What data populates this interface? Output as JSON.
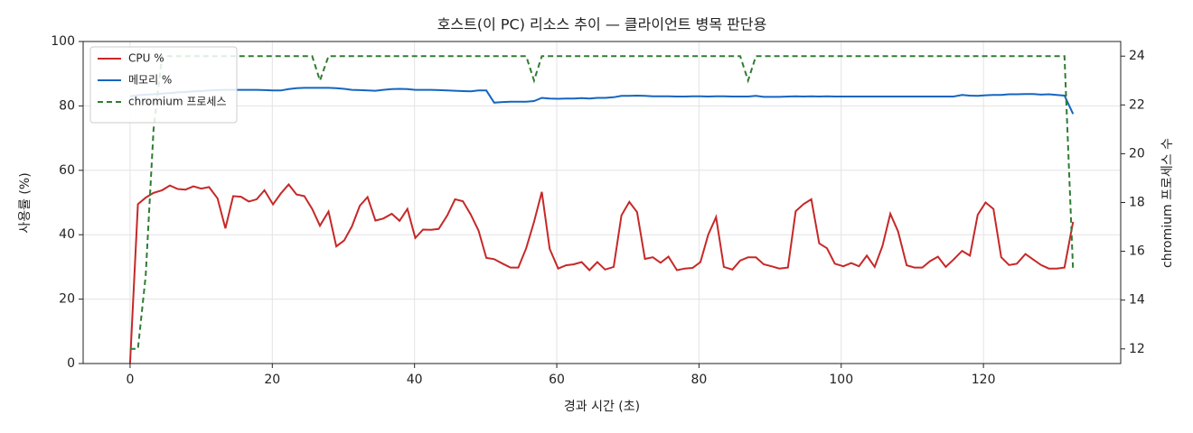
{
  "chart_data": {
    "type": "line",
    "title": "호스트(이 PC) 리소스 추이 — 클라이언트 병목 판단용",
    "x_label": "경과 시간 (초)",
    "y_label": "사용률 (%)",
    "y2_label": "chromium 프로세스 수",
    "x": [
      0,
      1.1,
      2.2,
      3.3,
      4.5,
      5.6,
      6.7,
      7.8,
      8.9,
      10,
      11.1,
      12.3,
      13.4,
      14.5,
      15.6,
      16.7,
      17.8,
      18.9,
      20.1,
      21.2,
      22.3,
      23.4,
      24.5,
      25.6,
      26.7,
      27.9,
      29,
      30.1,
      31.2,
      32.3,
      33.4,
      34.5,
      35.6,
      36.8,
      37.9,
      39,
      40.1,
      41.2,
      42.3,
      43.4,
      44.6,
      45.7,
      46.8,
      47.9,
      49,
      50.1,
      51.2,
      52.4,
      53.5,
      54.6,
      55.7,
      56.8,
      57.9,
      59,
      60.2,
      61.3,
      62.4,
      63.5,
      64.6,
      65.7,
      66.8,
      68,
      69.1,
      70.2,
      71.3,
      72.4,
      73.5,
      74.6,
      75.7,
      76.9,
      78,
      79.1,
      80.2,
      81.3,
      82.4,
      83.5,
      84.7,
      85.8,
      86.9,
      88,
      89.1,
      90.2,
      91.3,
      92.5,
      93.6,
      94.7,
      95.8,
      96.9,
      98,
      99.1,
      100.3,
      101.4,
      102.5,
      103.6,
      104.7,
      105.8,
      106.9,
      108,
      109.2,
      110.3,
      111.4,
      112.5,
      113.6,
      114.7,
      115.8,
      117,
      118.1,
      119.2,
      120.3,
      121.4,
      122.5,
      123.6,
      124.7,
      125.9,
      127,
      128.1,
      129.2,
      130.3,
      131.4,
      132.6
    ],
    "series": [
      {
        "name": "CPU %",
        "color": "#c62828",
        "dashed": false,
        "values": [
          0,
          49.5,
          51.5,
          53,
          53.8,
          55.3,
          54.2,
          54,
          55,
          54.3,
          54.8,
          51.3,
          42,
          52,
          51.8,
          50.3,
          51,
          53.8,
          49.4,
          52.8,
          55.6,
          52.5,
          52,
          48,
          42.8,
          47.2,
          36.4,
          38.2,
          42.6,
          49,
          51.7,
          44.4,
          45,
          46.5,
          44.3,
          48,
          39,
          41.6,
          41.5,
          41.8,
          46,
          51,
          50.4,
          46.3,
          41.3,
          32.8,
          32.4,
          31,
          29.8,
          29.8,
          35.8,
          44,
          53.3,
          35.6,
          29.5,
          30.5,
          30.8,
          31.5,
          29,
          31.5,
          29.2,
          30,
          46,
          50.2,
          47,
          32.5,
          33,
          31.3,
          33.2,
          29,
          29.5,
          29.7,
          31.5,
          40,
          45.5,
          30,
          29.2,
          32,
          33,
          33,
          30.8,
          30.2,
          29.5,
          29.8,
          47.3,
          49.5,
          51,
          37.3,
          35.8,
          31,
          30.2,
          31.2,
          30.2,
          33.5,
          30,
          36.5,
          46.5,
          41,
          30.5,
          29.8,
          29.8,
          31.8,
          33.2,
          30,
          32.3,
          35,
          33.5,
          46.2,
          50,
          48,
          33,
          30.6,
          31,
          34,
          32.3,
          30.6,
          29.5,
          29.5,
          29.8,
          44
        ]
      },
      {
        "name": "메모리 %",
        "color": "#1565c0",
        "dashed": false,
        "values": [
          83,
          83.3,
          83.5,
          83.6,
          83.8,
          84,
          84.2,
          84.3,
          84.5,
          84.6,
          84.8,
          84.9,
          85,
          85,
          85,
          85,
          85,
          84.9,
          84.8,
          84.8,
          85.2,
          85.5,
          85.6,
          85.6,
          85.6,
          85.6,
          85.5,
          85.3,
          85,
          84.9,
          84.8,
          84.7,
          85,
          85.2,
          85.3,
          85.2,
          85,
          85,
          85,
          84.9,
          84.8,
          84.7,
          84.6,
          84.5,
          84.8,
          84.8,
          81,
          81.2,
          81.3,
          81.3,
          81.3,
          81.5,
          82.5,
          82.3,
          82.2,
          82.3,
          82.3,
          82.4,
          82.3,
          82.5,
          82.5,
          82.7,
          83.1,
          83.1,
          83.2,
          83.1,
          83,
          83,
          83,
          82.9,
          82.9,
          83,
          83,
          82.9,
          83,
          83,
          82.9,
          82.9,
          82.9,
          83.1,
          82.8,
          82.8,
          82.8,
          82.9,
          83,
          82.9,
          83,
          82.9,
          83,
          82.9,
          82.9,
          82.9,
          82.9,
          82.9,
          82.9,
          82.9,
          82.9,
          82.9,
          82.9,
          82.9,
          82.9,
          82.9,
          82.9,
          82.9,
          82.9,
          83.4,
          83.2,
          83.1,
          83.3,
          83.4,
          83.4,
          83.6,
          83.6,
          83.7,
          83.7,
          83.5,
          83.6,
          83.4,
          83.2,
          77.5
        ]
      },
      {
        "name": "chromium 프로세스",
        "color": "#2e7d32",
        "dashed": true,
        "axis": "y2",
        "values": [
          12,
          12,
          15,
          21,
          24,
          24,
          24,
          24,
          24,
          24,
          24,
          24,
          24,
          24,
          24,
          24,
          24,
          24,
          24,
          24,
          24,
          24,
          24,
          24,
          23,
          24,
          24,
          24,
          24,
          24,
          24,
          24,
          24,
          24,
          24,
          24,
          24,
          24,
          24,
          24,
          24,
          24,
          24,
          24,
          24,
          24,
          24,
          24,
          24,
          24,
          24,
          23,
          24,
          24,
          24,
          24,
          24,
          24,
          24,
          24,
          24,
          24,
          24,
          24,
          24,
          24,
          24,
          24,
          24,
          24,
          24,
          24,
          24,
          24,
          24,
          24,
          24,
          24,
          23,
          24,
          24,
          24,
          24,
          24,
          24,
          24,
          24,
          24,
          24,
          24,
          24,
          24,
          24,
          24,
          24,
          24,
          24,
          24,
          24,
          24,
          24,
          24,
          24,
          24,
          24,
          24,
          24,
          24,
          24,
          24,
          24,
          24,
          24,
          24,
          24,
          24,
          24,
          24,
          24,
          15.2
        ]
      }
    ],
    "xlim": [
      -6.6,
      139.3
    ],
    "xticks": [
      0,
      20,
      40,
      60,
      80,
      100,
      120
    ],
    "ylim": [
      0,
      100
    ],
    "yticks": [
      0,
      20,
      40,
      60,
      80,
      100
    ],
    "y2lim": [
      11.4,
      24.6
    ],
    "y2ticks": [
      12,
      14,
      16,
      18,
      20,
      22,
      24
    ],
    "grid": true,
    "legend": "upper left"
  }
}
